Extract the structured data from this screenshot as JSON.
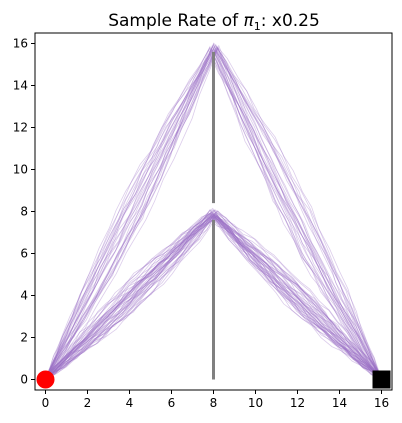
{
  "chart_data": {
    "type": "line",
    "title_prefix": "Sample Rate of ",
    "title_symbol": "π",
    "title_subscript": "1",
    "title_suffix": ": x0.25",
    "xlim": [
      -0.5,
      16.5
    ],
    "ylim": [
      -0.5,
      16.5
    ],
    "xticks": [
      0,
      2,
      4,
      6,
      8,
      10,
      12,
      14,
      16
    ],
    "yticks": [
      0,
      2,
      4,
      6,
      8,
      10,
      12,
      14,
      16
    ],
    "grid": false,
    "legend": "none",
    "start_marker": {
      "x": 0,
      "y": 0,
      "color": "#ff0000"
    },
    "goal_marker": {
      "x": 16,
      "y": 0,
      "color": "#000000"
    },
    "wall_segments": [
      {
        "x": 8,
        "y0": 0,
        "y1": 7.6
      },
      {
        "x": 8,
        "y0": 8.4,
        "y1": 15.6
      }
    ],
    "wall_color": "#808080",
    "trajectory_color": "#9b6fc7",
    "trajectory_groups": [
      {
        "peak": [
          8,
          16
        ],
        "start": [
          0,
          0
        ],
        "end": [
          16,
          0
        ],
        "count": 30
      },
      {
        "peak": [
          8,
          8.1
        ],
        "start": [
          0,
          0
        ],
        "end": [
          16,
          0
        ],
        "count": 45
      }
    ]
  }
}
